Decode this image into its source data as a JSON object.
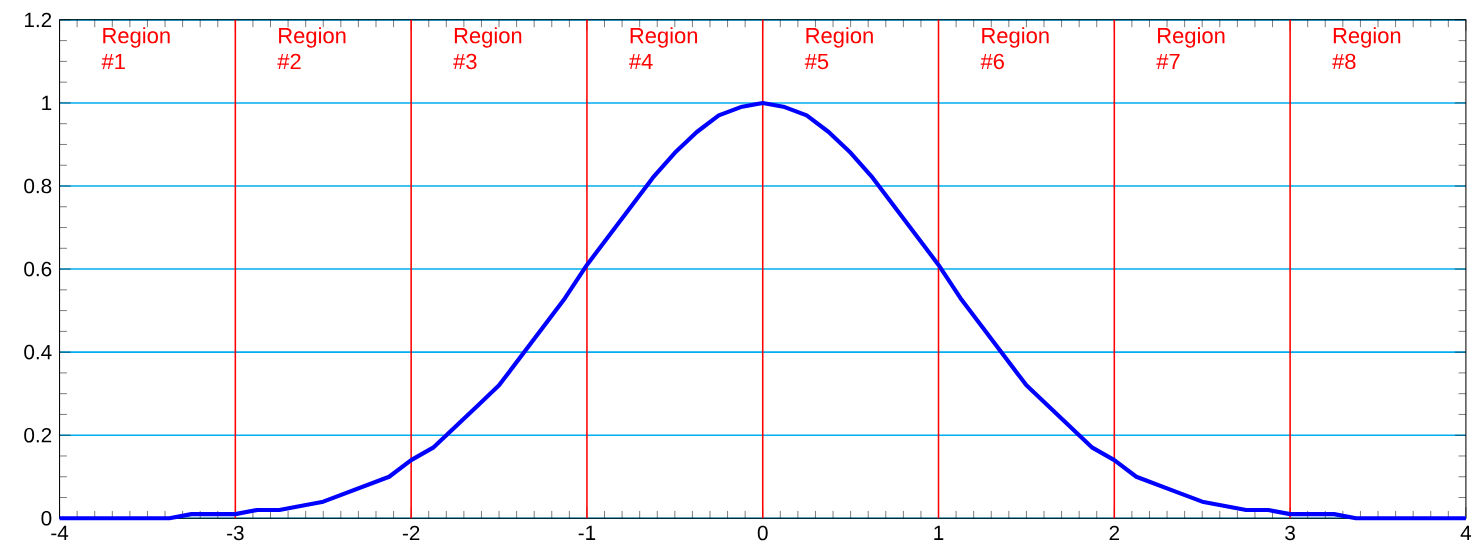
{
  "chart_data": {
    "type": "line",
    "x": [
      -4,
      -3.875,
      -3.75,
      -3.625,
      -3.5,
      -3.375,
      -3.25,
      -3.125,
      -3,
      -2.875,
      -2.75,
      -2.625,
      -2.5,
      -2.375,
      -2.25,
      -2.125,
      -2,
      -1.875,
      -1.75,
      -1.625,
      -1.5,
      -1.375,
      -1.25,
      -1.125,
      -1,
      -0.875,
      -0.75,
      -0.625,
      -0.5,
      -0.375,
      -0.25,
      -0.125,
      0,
      0.125,
      0.25,
      0.375,
      0.5,
      0.625,
      0.75,
      0.875,
      1,
      1.125,
      1.25,
      1.375,
      1.5,
      1.625,
      1.75,
      1.875,
      2,
      2.125,
      2.25,
      2.375,
      2.5,
      2.625,
      2.75,
      2.875,
      3,
      3.125,
      3.25,
      3.375,
      3.5,
      3.625,
      3.75,
      3.875,
      4
    ],
    "series": [
      {
        "color": "#0000ff",
        "values": [
          0,
          0,
          0,
          0,
          0,
          0,
          0.01,
          0.01,
          0.01,
          0.02,
          0.02,
          0.03,
          0.04,
          0.06,
          0.08,
          0.1,
          0.14,
          0.17,
          0.22,
          0.27,
          0.32,
          0.39,
          0.46,
          0.53,
          0.61,
          0.68,
          0.75,
          0.82,
          0.88,
          0.93,
          0.97,
          0.99,
          1,
          0.99,
          0.97,
          0.93,
          0.88,
          0.82,
          0.75,
          0.68,
          0.61,
          0.53,
          0.46,
          0.39,
          0.32,
          0.27,
          0.22,
          0.17,
          0.14,
          0.1,
          0.08,
          0.06,
          0.04,
          0.03,
          0.02,
          0.02,
          0.01,
          0.01,
          0.01,
          0,
          0,
          0,
          0,
          0,
          0
        ]
      }
    ],
    "xlim": [
      -4,
      4
    ],
    "xticks": [
      -4,
      -3,
      -2,
      -1,
      0,
      1,
      2,
      3,
      4
    ],
    "ylim": [
      0,
      1.2
    ],
    "yticks": [
      0,
      0.2,
      0.4,
      0.6,
      0.8,
      1,
      1.2
    ],
    "grid": "y",
    "marker": "none",
    "line_style": "solid",
    "ref_lines": [
      {
        "axis": "x",
        "value": -3,
        "color": "#ff0000"
      },
      {
        "axis": "x",
        "value": -2,
        "color": "#ff0000"
      },
      {
        "axis": "x",
        "value": -1,
        "color": "#ff0000"
      },
      {
        "axis": "x",
        "value": 0,
        "color": "#ff0000"
      },
      {
        "axis": "x",
        "value": 1,
        "color": "#ff0000"
      },
      {
        "axis": "x",
        "value": 2,
        "color": "#ff0000"
      },
      {
        "axis": "x",
        "value": 3,
        "color": "#ff0000"
      }
    ],
    "annotations": [
      "Region #1",
      "Region #2",
      "Region #3",
      "Region #4",
      "Region #5",
      "Region #6",
      "Region #7",
      "Region #8"
    ]
  }
}
